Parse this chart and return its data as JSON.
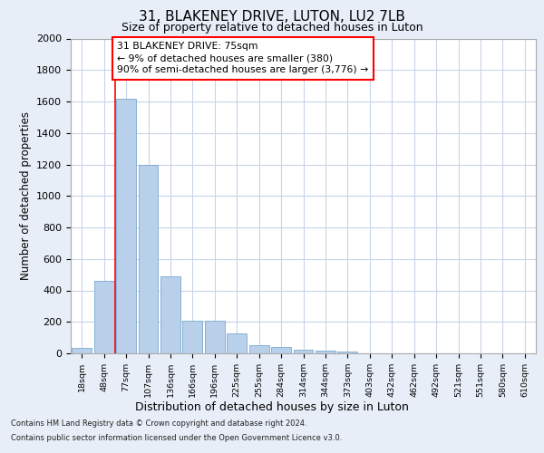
{
  "title_line1": "31, BLAKENEY DRIVE, LUTON, LU2 7LB",
  "title_line2": "Size of property relative to detached houses in Luton",
  "xlabel": "Distribution of detached houses by size in Luton",
  "ylabel": "Number of detached properties",
  "categories": [
    "18sqm",
    "48sqm",
    "77sqm",
    "107sqm",
    "136sqm",
    "166sqm",
    "196sqm",
    "225sqm",
    "255sqm",
    "284sqm",
    "314sqm",
    "344sqm",
    "373sqm",
    "403sqm",
    "432sqm",
    "462sqm",
    "492sqm",
    "521sqm",
    "551sqm",
    "580sqm",
    "610sqm"
  ],
  "values": [
    35,
    460,
    1620,
    1200,
    490,
    210,
    210,
    125,
    50,
    40,
    25,
    20,
    12,
    0,
    0,
    0,
    0,
    0,
    0,
    0,
    0
  ],
  "bar_color": "#b8d0ea",
  "bar_edge_color": "#7aaad0",
  "annotation_text": "31 BLAKENEY DRIVE: 75sqm\n← 9% of detached houses are smaller (380)\n90% of semi-detached houses are larger (3,776) →",
  "annotation_box_color": "white",
  "annotation_border_color": "red",
  "vline_color": "red",
  "ylim": [
    0,
    2000
  ],
  "yticks": [
    0,
    200,
    400,
    600,
    800,
    1000,
    1200,
    1400,
    1600,
    1800,
    2000
  ],
  "footer_line1": "Contains HM Land Registry data © Crown copyright and database right 2024.",
  "footer_line2": "Contains public sector information licensed under the Open Government Licence v3.0.",
  "bg_color": "#e8eef8",
  "plot_bg_color": "#ffffff",
  "grid_color": "#c8d4e8"
}
